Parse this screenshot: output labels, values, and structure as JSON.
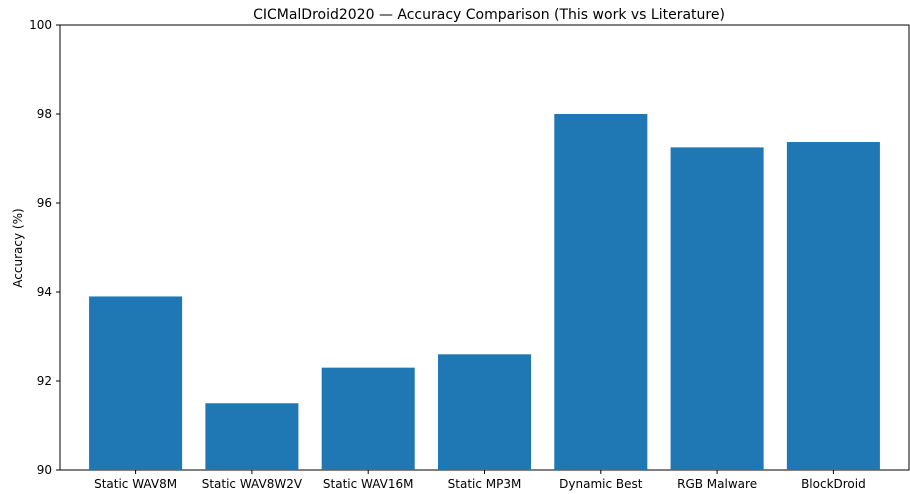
{
  "chart_data": {
    "type": "bar",
    "title": "CICMalDroid2020 — Accuracy Comparison (This work vs Literature)",
    "xlabel": "",
    "ylabel": "Accuracy (%)",
    "categories": [
      "Static WAV8M",
      "Static WAV8W2V",
      "Static WAV16M",
      "Static MP3M",
      "Dynamic Best",
      "RGB Malware",
      "BlockDroid"
    ],
    "values": [
      93.9,
      91.5,
      92.3,
      92.6,
      98.0,
      97.25,
      97.37
    ],
    "ylim": [
      90,
      100
    ],
    "yticks": [
      90,
      92,
      94,
      96,
      98,
      100
    ],
    "bar_color": "#1f77b4",
    "grid": false,
    "legend": "none"
  }
}
